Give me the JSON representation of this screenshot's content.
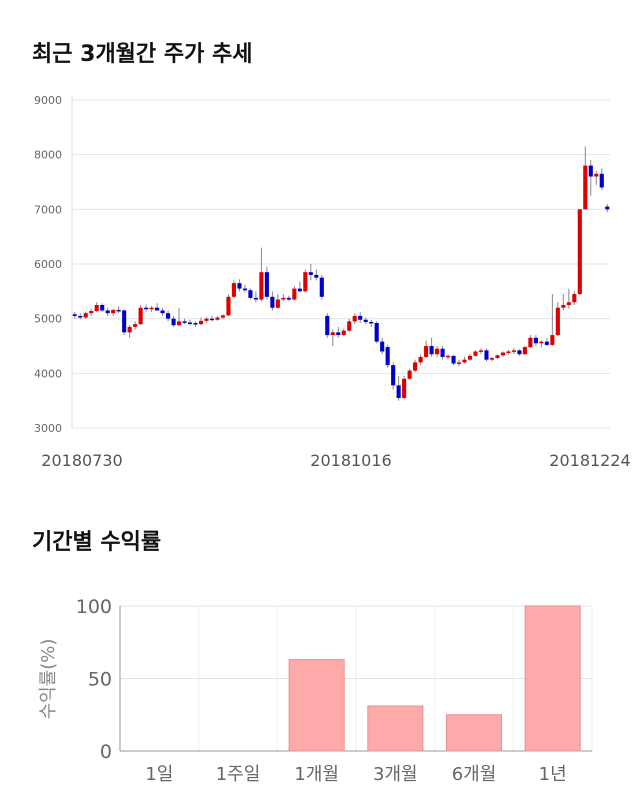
{
  "section1": {
    "title": "최근 3개월간 주가 추세"
  },
  "section2": {
    "title": "기간별 수익률"
  },
  "chart_data": [
    {
      "type": "candlestick",
      "title": "최근 3개월간 주가 추세",
      "ylim": [
        3000,
        9000
      ],
      "y_ticks": [
        "9000",
        "8000",
        "7000",
        "6000",
        "5000",
        "4000",
        "3000"
      ],
      "x_tick_labels": [
        "20180730",
        "20181016",
        "20181224"
      ],
      "grid": true,
      "colors": {
        "up": "#dd0000",
        "down": "#0000cc",
        "wick": "#888888"
      },
      "ohlc": [
        [
          5080,
          5120,
          5000,
          5050
        ],
        [
          5050,
          5100,
          4990,
          5020
        ],
        [
          5020,
          5130,
          5000,
          5100
        ],
        [
          5100,
          5180,
          5050,
          5140
        ],
        [
          5140,
          5300,
          5120,
          5250
        ],
        [
          5250,
          5280,
          5120,
          5150
        ],
        [
          5150,
          5200,
          5050,
          5100
        ],
        [
          5100,
          5180,
          5050,
          5160
        ],
        [
          5160,
          5230,
          5100,
          5150
        ],
        [
          5150,
          5170,
          4700,
          4750
        ],
        [
          4750,
          4880,
          4650,
          4850
        ],
        [
          4850,
          4950,
          4800,
          4900
        ],
        [
          4900,
          5250,
          4880,
          5200
        ],
        [
          5200,
          5260,
          5130,
          5180
        ],
        [
          5180,
          5230,
          5120,
          5200
        ],
        [
          5200,
          5280,
          5150,
          5150
        ],
        [
          5150,
          5200,
          5050,
          5100
        ],
        [
          5100,
          5150,
          4950,
          5000
        ],
        [
          5000,
          5050,
          4850,
          4880
        ],
        [
          4880,
          5200,
          4860,
          4950
        ],
        [
          4950,
          5000,
          4900,
          4930
        ],
        [
          4930,
          4980,
          4880,
          4920
        ],
        [
          4920,
          4950,
          4850,
          4900
        ],
        [
          4900,
          5020,
          4880,
          4960
        ],
        [
          4960,
          5030,
          4930,
          5000
        ],
        [
          5000,
          5050,
          4950,
          4980
        ],
        [
          4980,
          5050,
          4960,
          5020
        ],
        [
          5020,
          5080,
          4990,
          5060
        ],
        [
          5060,
          5450,
          5050,
          5400
        ],
        [
          5400,
          5700,
          5380,
          5650
        ],
        [
          5650,
          5720,
          5500,
          5550
        ],
        [
          5550,
          5620,
          5480,
          5520
        ],
        [
          5520,
          5550,
          5350,
          5380
        ],
        [
          5380,
          5500,
          5300,
          5350
        ],
        [
          5350,
          6300,
          5320,
          5850
        ],
        [
          5850,
          5950,
          5350,
          5400
        ],
        [
          5400,
          5500,
          5150,
          5200
        ],
        [
          5200,
          5450,
          5180,
          5350
        ],
        [
          5350,
          5450,
          5320,
          5380
        ],
        [
          5380,
          5420,
          5320,
          5350
        ],
        [
          5350,
          5600,
          5330,
          5550
        ],
        [
          5550,
          5680,
          5480,
          5500
        ],
        [
          5500,
          5900,
          5480,
          5850
        ],
        [
          5850,
          6000,
          5700,
          5800
        ],
        [
          5800,
          5900,
          5700,
          5750
        ],
        [
          5750,
          5800,
          5350,
          5400
        ],
        [
          5050,
          5100,
          4650,
          4700
        ],
        [
          4700,
          4800,
          4500,
          4750
        ],
        [
          4750,
          4850,
          4650,
          4700
        ],
        [
          4700,
          4820,
          4680,
          4780
        ],
        [
          4780,
          5000,
          4750,
          4950
        ],
        [
          4950,
          5100,
          4900,
          5050
        ],
        [
          5050,
          5120,
          4920,
          4980
        ],
        [
          4980,
          5020,
          4900,
          4940
        ],
        [
          4940,
          4980,
          4850,
          4920
        ],
        [
          4920,
          4950,
          4550,
          4580
        ],
        [
          4580,
          4650,
          4350,
          4400
        ],
        [
          4480,
          4520,
          4100,
          4150
        ],
        [
          4150,
          4200,
          3700,
          3780
        ],
        [
          3780,
          3950,
          3500,
          3550
        ],
        [
          3550,
          3950,
          3530,
          3900
        ],
        [
          3900,
          4080,
          3880,
          4050
        ],
        [
          4050,
          4250,
          4020,
          4200
        ],
        [
          4200,
          4350,
          4150,
          4300
        ],
        [
          4300,
          4600,
          4280,
          4500
        ],
        [
          4500,
          4650,
          4300,
          4350
        ],
        [
          4350,
          4500,
          4300,
          4450
        ],
        [
          4450,
          4500,
          4250,
          4300
        ],
        [
          4300,
          4350,
          4250,
          4320
        ],
        [
          4320,
          4330,
          4150,
          4180
        ],
        [
          4180,
          4250,
          4130,
          4200
        ],
        [
          4200,
          4300,
          4180,
          4250
        ],
        [
          4250,
          4350,
          4230,
          4320
        ],
        [
          4320,
          4420,
          4300,
          4400
        ],
        [
          4400,
          4460,
          4350,
          4420
        ],
        [
          4420,
          4450,
          4220,
          4250
        ],
        [
          4250,
          4300,
          4220,
          4280
        ],
        [
          4280,
          4350,
          4260,
          4330
        ],
        [
          4330,
          4400,
          4300,
          4380
        ],
        [
          4380,
          4430,
          4340,
          4400
        ],
        [
          4400,
          4460,
          4350,
          4420
        ],
        [
          4420,
          4440,
          4320,
          4350
        ],
        [
          4350,
          4500,
          4330,
          4480
        ],
        [
          4480,
          4700,
          4460,
          4650
        ],
        [
          4650,
          4700,
          4500,
          4550
        ],
        [
          4550,
          4600,
          4480,
          4580
        ],
        [
          4580,
          4650,
          4500,
          4520
        ],
        [
          4520,
          5450,
          4500,
          4700
        ],
        [
          4700,
          5300,
          4680,
          5200
        ],
        [
          5200,
          5450,
          5150,
          5250
        ],
        [
          5250,
          5550,
          5180,
          5300
        ],
        [
          5300,
          5500,
          5250,
          5450
        ],
        [
          5450,
          7000,
          5430,
          7000
        ],
        [
          7000,
          8150,
          7000,
          7800
        ],
        [
          7800,
          7900,
          7250,
          7600
        ],
        [
          7600,
          7700,
          7450,
          7650
        ],
        [
          7650,
          7750,
          7350,
          7400
        ],
        [
          7050,
          7100,
          6950,
          7000
        ]
      ]
    },
    {
      "type": "bar",
      "categories": [
        "1일",
        "1주일",
        "1개월",
        "3개월",
        "6개월",
        "1년"
      ],
      "values": [
        0,
        0,
        63,
        31,
        25,
        100
      ],
      "ylabel": "수익률(%)",
      "ylim": [
        0,
        100
      ],
      "y_ticks": [
        "100",
        "50",
        "0"
      ],
      "grid": true,
      "bar_color": "#ffaaaa"
    }
  ]
}
